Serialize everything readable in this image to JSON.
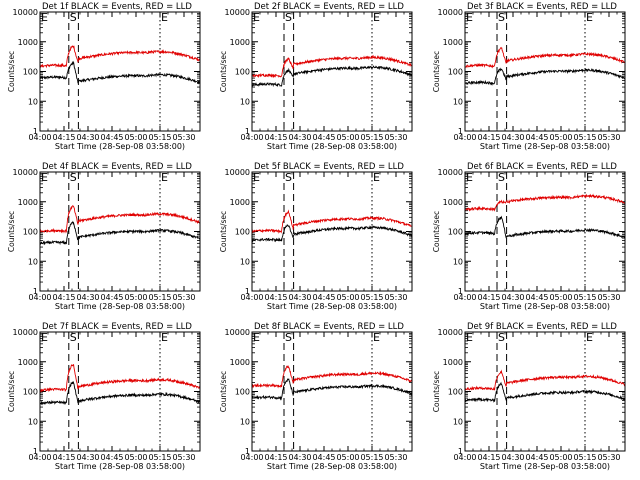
{
  "figure": {
    "background": "#ffffff",
    "axis_color": "#000000",
    "events_color": "#000000",
    "lld_color": "#e00000"
  },
  "chart_data": [
    {
      "type": "line",
      "title": "Det 1f BLACK = Events, RED = LLD",
      "xlabel": "Start Time (28-Sep-08 03:58:00)",
      "ylabel": "Counts/sec",
      "yscale": "log",
      "ylim": [
        1,
        10000
      ],
      "y_tick_labels": [
        "1",
        "10",
        "100",
        "1000",
        "10000"
      ],
      "xlim": [
        "04:00",
        "05:40"
      ],
      "x_tick_labels": [
        "04:00",
        "04:15",
        "04:30",
        "04:45",
        "05:00",
        "05:15",
        "05:30"
      ],
      "markers": [
        {
          "label": "E",
          "time": "04:00",
          "style": "dotted"
        },
        {
          "label": "S",
          "time": "04:18",
          "style": "dashed"
        },
        {
          "label": "",
          "time": "04:24",
          "style": "dashed"
        },
        {
          "label": "E",
          "time": "05:15",
          "style": "dotted"
        }
      ],
      "series": [
        {
          "id": "events",
          "baseline": 60,
          "peak": 190,
          "post": 35,
          "bump": 1.6
        },
        {
          "id": "lld",
          "baseline": 150,
          "peak": 700,
          "post": 180,
          "bump": 2.0
        }
      ]
    },
    {
      "type": "line",
      "title": "Det 2f BLACK = Events, RED = LLD",
      "xlabel": "Start Time (28-Sep-08 03:58:00)",
      "ylabel": "Counts/sec",
      "yscale": "log",
      "ylim": [
        1,
        10000
      ],
      "y_tick_labels": [
        "1",
        "10",
        "100",
        "1000",
        "10000"
      ],
      "xlim": [
        "04:00",
        "05:40"
      ],
      "x_tick_labels": [
        "04:00",
        "04:15",
        "04:30",
        "04:45",
        "05:00",
        "05:15",
        "05:30"
      ],
      "markers": [
        {
          "label": "E",
          "time": "04:00",
          "style": "dotted"
        },
        {
          "label": "S",
          "time": "04:20",
          "style": "dashed"
        },
        {
          "label": "",
          "time": "04:26",
          "style": "dashed"
        },
        {
          "label": "E",
          "time": "05:15",
          "style": "dotted"
        }
      ],
      "series": [
        {
          "id": "events",
          "baseline": 35,
          "peak": 110,
          "post": 60,
          "bump": 1.7
        },
        {
          "id": "lld",
          "baseline": 70,
          "peak": 260,
          "post": 120,
          "bump": 1.9
        }
      ]
    },
    {
      "type": "line",
      "title": "Det 3f BLACK = Events, RED = LLD",
      "xlabel": "Start Time (28-Sep-08 03:58:00)",
      "ylabel": "Counts/sec",
      "yscale": "log",
      "ylim": [
        1,
        10000
      ],
      "y_tick_labels": [
        "1",
        "10",
        "100",
        "1000",
        "10000"
      ],
      "xlim": [
        "04:00",
        "05:40"
      ],
      "x_tick_labels": [
        "04:00",
        "04:15",
        "04:30",
        "04:45",
        "05:00",
        "05:15",
        "05:30"
      ],
      "markers": [
        {
          "label": "E",
          "time": "04:00",
          "style": "dotted"
        },
        {
          "label": "S",
          "time": "04:20",
          "style": "dashed"
        },
        {
          "label": "",
          "time": "04:26",
          "style": "dashed"
        },
        {
          "label": "E",
          "time": "05:15",
          "style": "dotted"
        }
      ],
      "series": [
        {
          "id": "events",
          "baseline": 40,
          "peak": 120,
          "post": 50,
          "bump": 1.6
        },
        {
          "id": "lld",
          "baseline": 150,
          "peak": 600,
          "post": 160,
          "bump": 1.8
        }
      ]
    },
    {
      "type": "line",
      "title": "Det 4f BLACK = Events, RED = LLD",
      "xlabel": "Start Time (28-Sep-08 03:58:00)",
      "ylabel": "Counts/sec",
      "yscale": "log",
      "ylim": [
        1,
        10000
      ],
      "y_tick_labels": [
        "1",
        "10",
        "100",
        "1000",
        "10000"
      ],
      "xlim": [
        "04:00",
        "05:40"
      ],
      "x_tick_labels": [
        "04:00",
        "04:15",
        "04:30",
        "04:45",
        "05:00",
        "05:15",
        "05:30"
      ],
      "markers": [
        {
          "label": "E",
          "time": "04:00",
          "style": "dotted"
        },
        {
          "label": "S",
          "time": "04:18",
          "style": "dashed"
        },
        {
          "label": "",
          "time": "04:24",
          "style": "dashed"
        },
        {
          "label": "E",
          "time": "05:15",
          "style": "dotted"
        }
      ],
      "series": [
        {
          "id": "events",
          "baseline": 40,
          "peak": 200,
          "post": 45,
          "bump": 1.8
        },
        {
          "id": "lld",
          "baseline": 100,
          "peak": 700,
          "post": 150,
          "bump": 2.0
        }
      ]
    },
    {
      "type": "line",
      "title": "Det 5f BLACK = Events, RED = LLD",
      "xlabel": "Start Time (28-Sep-08 03:58:00)",
      "ylabel": "Counts/sec",
      "yscale": "log",
      "ylim": [
        1,
        10000
      ],
      "y_tick_labels": [
        "1",
        "10",
        "100",
        "1000",
        "10000"
      ],
      "xlim": [
        "04:00",
        "05:40"
      ],
      "x_tick_labels": [
        "04:00",
        "04:15",
        "04:30",
        "04:45",
        "05:00",
        "05:15",
        "05:30"
      ],
      "markers": [
        {
          "label": "E",
          "time": "04:00",
          "style": "dotted"
        },
        {
          "label": "S",
          "time": "04:20",
          "style": "dashed"
        },
        {
          "label": "",
          "time": "04:26",
          "style": "dashed"
        },
        {
          "label": "E",
          "time": "05:15",
          "style": "dotted"
        }
      ],
      "series": [
        {
          "id": "events",
          "baseline": 50,
          "peak": 160,
          "post": 55,
          "bump": 1.9
        },
        {
          "id": "lld",
          "baseline": 100,
          "peak": 450,
          "post": 110,
          "bump": 2.0
        }
      ]
    },
    {
      "type": "line",
      "title": "Det 6f BLACK = Events, RED = LLD",
      "xlabel": "Start Time (28-Sep-08 03:58:00)",
      "ylabel": "Counts/sec",
      "yscale": "log",
      "ylim": [
        1,
        10000
      ],
      "y_tick_labels": [
        "1",
        "10",
        "100",
        "1000",
        "10000"
      ],
      "xlim": [
        "04:00",
        "05:40"
      ],
      "x_tick_labels": [
        "04:00",
        "04:15",
        "04:30",
        "04:45",
        "05:00",
        "05:15",
        "05:30"
      ],
      "markers": [
        {
          "label": "E",
          "time": "04:00",
          "style": "dotted"
        },
        {
          "label": "S",
          "time": "04:20",
          "style": "dashed"
        },
        {
          "label": "",
          "time": "04:26",
          "style": "dashed"
        },
        {
          "label": "E",
          "time": "05:15",
          "style": "dotted"
        }
      ],
      "series": [
        {
          "id": "events",
          "baseline": 85,
          "peak": 300,
          "post": 55,
          "bump": 1.4
        },
        {
          "id": "lld",
          "baseline": 550,
          "peak": 1000,
          "post": 900,
          "bump": 1.05
        }
      ]
    },
    {
      "type": "line",
      "title": "Det 7f BLACK = Events, RED = LLD",
      "xlabel": "Start Time (28-Sep-08 03:58:00)",
      "ylabel": "Counts/sec",
      "yscale": "log",
      "ylim": [
        1,
        10000
      ],
      "y_tick_labels": [
        "1",
        "10",
        "100",
        "1000",
        "10000"
      ],
      "xlim": [
        "04:00",
        "05:40"
      ],
      "x_tick_labels": [
        "04:00",
        "04:15",
        "04:30",
        "04:45",
        "05:00",
        "05:15",
        "05:30"
      ],
      "markers": [
        {
          "label": "E",
          "time": "04:00",
          "style": "dotted"
        },
        {
          "label": "S",
          "time": "04:18",
          "style": "dashed"
        },
        {
          "label": "",
          "time": "04:24",
          "style": "dashed"
        },
        {
          "label": "E",
          "time": "05:15",
          "style": "dotted"
        }
      ],
      "series": [
        {
          "id": "events",
          "baseline": 40,
          "peak": 200,
          "post": 35,
          "bump": 1.7
        },
        {
          "id": "lld",
          "baseline": 110,
          "peak": 800,
          "post": 100,
          "bump": 1.9
        }
      ]
    },
    {
      "type": "line",
      "title": "Det 8f BLACK = Events, RED = LLD",
      "xlabel": "Start Time (28-Sep-08 03:58:00)",
      "ylabel": "Counts/sec",
      "yscale": "log",
      "ylim": [
        1,
        10000
      ],
      "y_tick_labels": [
        "1",
        "10",
        "100",
        "1000",
        "10000"
      ],
      "xlim": [
        "04:00",
        "05:40"
      ],
      "x_tick_labels": [
        "04:00",
        "04:15",
        "04:30",
        "04:45",
        "05:00",
        "05:15",
        "05:30"
      ],
      "markers": [
        {
          "label": "E",
          "time": "04:00",
          "style": "dotted"
        },
        {
          "label": "S",
          "time": "04:20",
          "style": "dashed"
        },
        {
          "label": "",
          "time": "04:26",
          "style": "dashed"
        },
        {
          "label": "E",
          "time": "05:15",
          "style": "dotted"
        }
      ],
      "series": [
        {
          "id": "events",
          "baseline": 60,
          "peak": 250,
          "post": 70,
          "bump": 1.6
        },
        {
          "id": "lld",
          "baseline": 150,
          "peak": 700,
          "post": 170,
          "bump": 1.8
        }
      ]
    },
    {
      "type": "line",
      "title": "Det 9f BLACK = Events, RED = LLD",
      "xlabel": "Start Time (28-Sep-08 03:58:00)",
      "ylabel": "Counts/sec",
      "yscale": "log",
      "ylim": [
        1,
        10000
      ],
      "y_tick_labels": [
        "1",
        "10",
        "100",
        "1000",
        "10000"
      ],
      "xlim": [
        "04:00",
        "05:40"
      ],
      "x_tick_labels": [
        "04:00",
        "04:15",
        "04:30",
        "04:45",
        "05:00",
        "05:15",
        "05:30"
      ],
      "markers": [
        {
          "label": "E",
          "time": "04:00",
          "style": "dotted"
        },
        {
          "label": "S",
          "time": "04:20",
          "style": "dashed"
        },
        {
          "label": "",
          "time": "04:26",
          "style": "dashed"
        },
        {
          "label": "E",
          "time": "05:15",
          "style": "dotted"
        }
      ],
      "series": [
        {
          "id": "events",
          "baseline": 50,
          "peak": 180,
          "post": 45,
          "bump": 1.6
        },
        {
          "id": "lld",
          "baseline": 120,
          "peak": 450,
          "post": 130,
          "bump": 1.9
        }
      ]
    }
  ]
}
